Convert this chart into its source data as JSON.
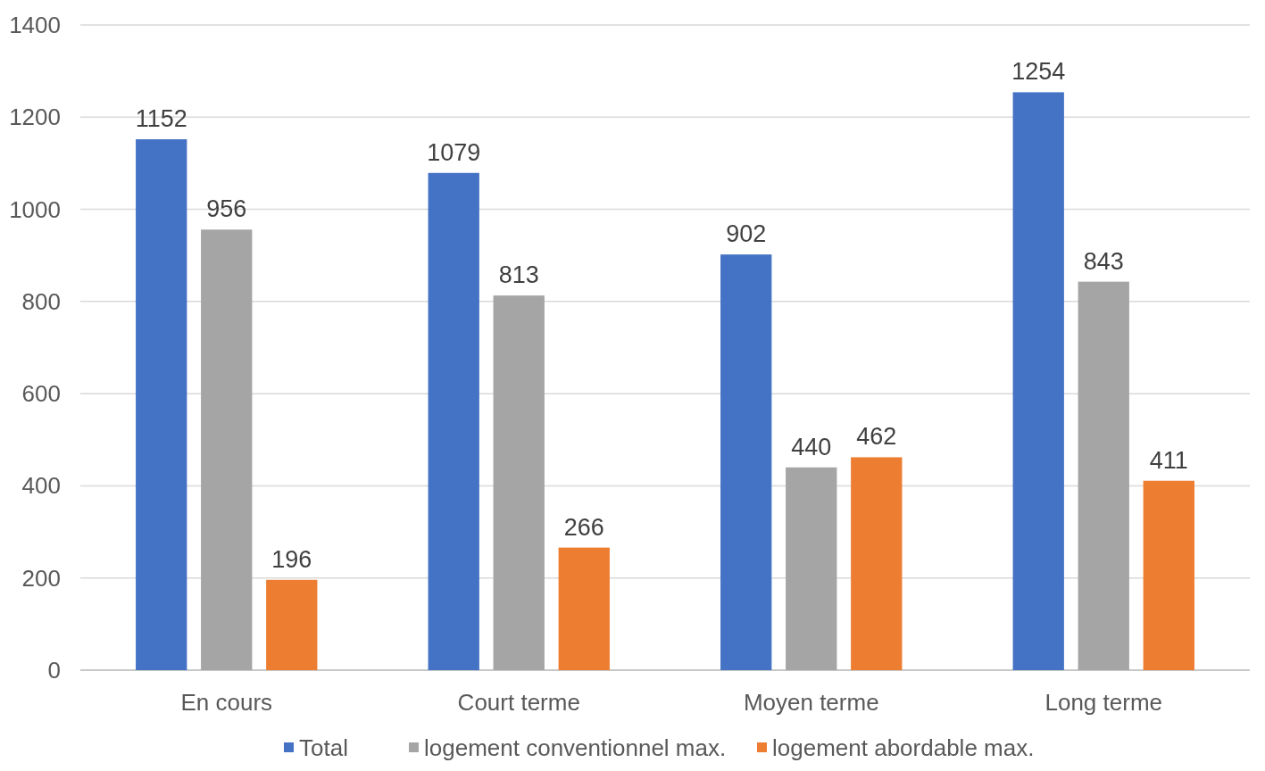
{
  "chart_data": {
    "type": "bar",
    "categories": [
      "En cours",
      "Court terme",
      "Moyen terme",
      "Long terme"
    ],
    "series": [
      {
        "name": "Total",
        "color": "#4472c4",
        "values": [
          1152,
          1079,
          902,
          1254
        ]
      },
      {
        "name": "logement conventionnel max.",
        "color": "#a5a5a5",
        "values": [
          956,
          813,
          440,
          843
        ]
      },
      {
        "name": "logement abordable max.",
        "color": "#ed7d31",
        "values": [
          196,
          266,
          462,
          411
        ]
      }
    ],
    "ylim": [
      0,
      1400
    ],
    "yticks": [
      0,
      200,
      400,
      600,
      800,
      1000,
      1200,
      1400
    ],
    "grid": "y",
    "legend": "bottom",
    "data_labels": true
  }
}
